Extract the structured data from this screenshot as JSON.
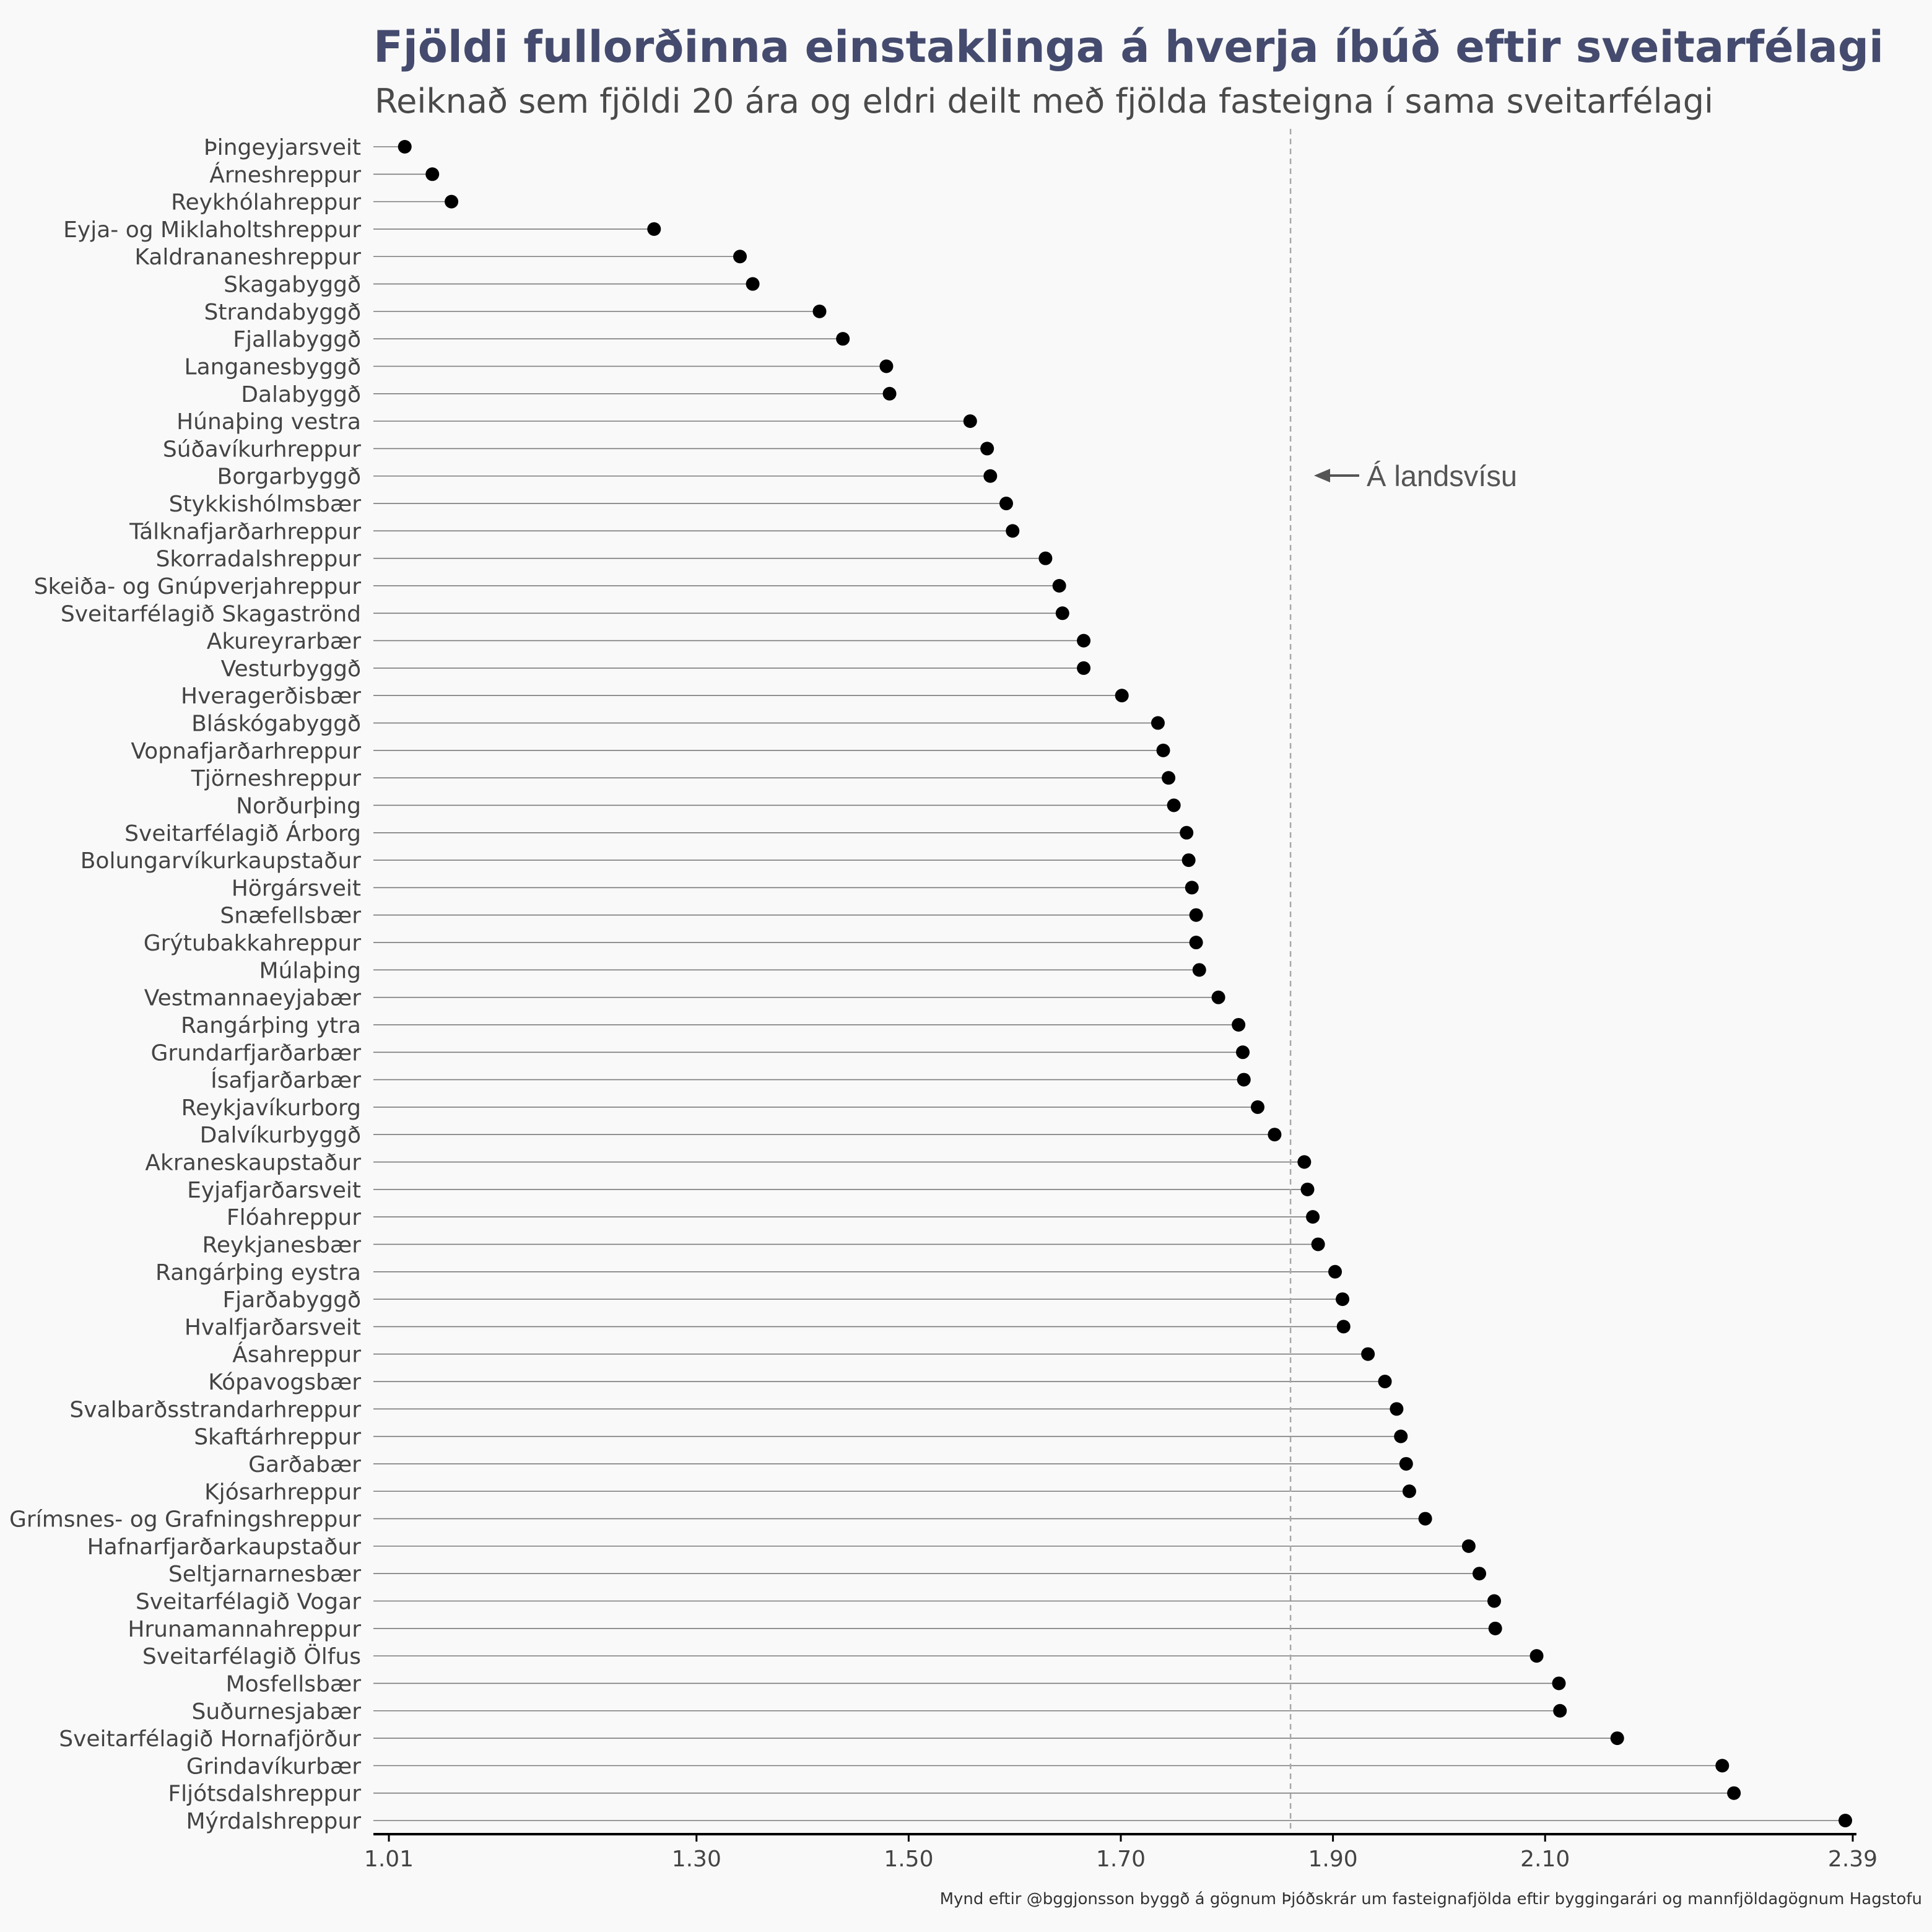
{
  "chart_data": {
    "type": "lollipop",
    "title": "Fjöldi fullorðinna einstaklinga á hverja íbúð eftir sveitarfélagi",
    "subtitle": "Reiknað sem fjöldi 20 ára og eldri deilt með fjölda fasteigna í sama sveitarfélagi",
    "caption": "Mynd eftir @bggjonsson byggð á gögnum Þjóðskrár um fasteignafjölda eftir byggingarári og mannfjöldagögnum Hagstofu",
    "annotation": "Á landsvísu",
    "reference_value": 1.86,
    "xlim": [
      1.01,
      2.39
    ],
    "x_ticks": [
      "1.01",
      "1.30",
      "1.50",
      "1.70",
      "1.90",
      "2.10",
      "2.39"
    ],
    "categories": [
      "Þingeyjarsveit",
      "Árneshreppur",
      "Reykhólahreppur",
      "Eyja- og Miklaholtshreppur",
      "Kaldrananeshreppur",
      "Skagabyggð",
      "Strandabyggð",
      "Fjallabyggð",
      "Langanesbyggð",
      "Dalabyggð",
      "Húnaþing vestra",
      "Súðavíkurhreppur",
      "Borgarbyggð",
      "Stykkishólmsbær",
      "Tálknafjarðarhreppur",
      "Skorradalshreppur",
      "Skeiða- og Gnúpverjahreppur",
      "Sveitarfélagið Skagaströnd",
      "Akureyrarbær",
      "Vesturbyggð",
      "Hveragerðisbær",
      "Bláskógabyggð",
      "Vopnafjarðarhreppur",
      "Tjörneshreppur",
      "Norðurþing",
      "Sveitarfélagið Árborg",
      "Bolungarvíkurkaupstaður",
      "Hörgársveit",
      "Snæfellsbær",
      "Grýtubakkahreppur",
      "Múlaþing",
      "Vestmannaeyjabær",
      "Rangárþing ytra",
      "Grundarfjarðarbær",
      "Ísafjarðarbær",
      "Reykjavíkurborg",
      "Dalvíkurbyggð",
      "Akraneskaupstaður",
      "Eyjafjarðarsveit",
      "Flóahreppur",
      "Reykjanesbær",
      "Rangárþing eystra",
      "Fjarðabyggð",
      "Hvalfjarðarsveit",
      "Ásahreppur",
      "Kópavogsbær",
      "Svalbarðsstrandarhreppur",
      "Skaftárhreppur",
      "Garðabær",
      "Kjósarhreppur",
      "Grímsnes- og Grafningshreppur",
      "Hafnarfjarðarkaupstaður",
      "Seltjarnarnesbær",
      "Sveitarfélagið Vogar",
      "Hrunamannahreppur",
      "Sveitarfélagið Ölfus",
      "Mosfellsbær",
      "Suðurnesjabær",
      "Sveitarfélagið Hornafjörður",
      "Grindavíkurbær",
      "Fljótsdalshreppur",
      "Mýrdalshreppur"
    ],
    "values": [
      1.025,
      1.051,
      1.069,
      1.26,
      1.341,
      1.353,
      1.416,
      1.438,
      1.479,
      1.482,
      1.558,
      1.574,
      1.577,
      1.592,
      1.598,
      1.629,
      1.642,
      1.645,
      1.665,
      1.665,
      1.701,
      1.735,
      1.74,
      1.745,
      1.75,
      1.762,
      1.764,
      1.767,
      1.771,
      1.771,
      1.774,
      1.792,
      1.811,
      1.815,
      1.816,
      1.829,
      1.845,
      1.873,
      1.876,
      1.881,
      1.886,
      1.902,
      1.909,
      1.91,
      1.933,
      1.949,
      1.96,
      1.964,
      1.969,
      1.972,
      1.987,
      2.028,
      2.038,
      2.052,
      2.053,
      2.092,
      2.113,
      2.114,
      2.168,
      2.267,
      2.278,
      2.383
    ],
    "grid": false,
    "legend": "none"
  },
  "colors": {
    "background": "#f9f9f9",
    "point": "#000000",
    "segment": "#7a7a7a",
    "title": "#444b6e",
    "reference_line": "#a8a8a8",
    "axis": "#000000"
  }
}
